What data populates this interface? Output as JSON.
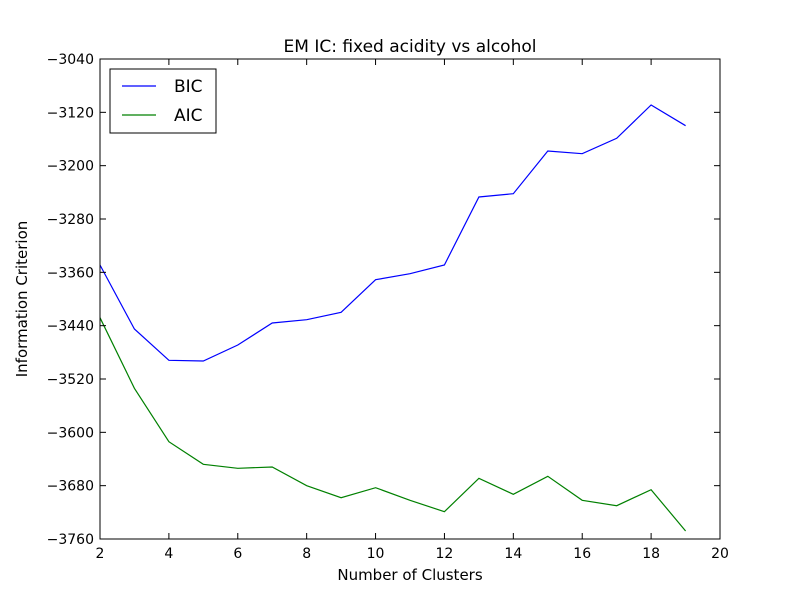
{
  "chart_data": {
    "type": "line",
    "title": "EM IC: fixed acidity vs alcohol",
    "xlabel": "Number of Clusters",
    "ylabel": "Information Criterion",
    "xlim": [
      2,
      20
    ],
    "ylim": [
      -3760,
      -3040
    ],
    "xticks": [
      2,
      4,
      6,
      8,
      10,
      12,
      14,
      16,
      18,
      20
    ],
    "yticks": [
      -3760,
      -3680,
      -3600,
      -3520,
      -3440,
      -3360,
      -3280,
      -3200,
      -3120,
      -3040
    ],
    "xtick_labels": [
      "2",
      "4",
      "6",
      "8",
      "10",
      "12",
      "14",
      "16",
      "18",
      "20"
    ],
    "ytick_labels": [
      "−3760",
      "−3680",
      "−3600",
      "−3520",
      "−3440",
      "−3360",
      "−3280",
      "−3200",
      "−3120",
      "−3040"
    ],
    "grid": false,
    "legend_position": "top-left",
    "x": [
      2,
      3,
      4,
      5,
      6,
      7,
      8,
      9,
      10,
      11,
      12,
      13,
      14,
      15,
      16,
      17,
      18,
      19
    ],
    "series": [
      {
        "name": "BIC",
        "color": "#0000ff",
        "values": [
          -3349,
          -3445,
          -3492,
          -3493,
          -3469,
          -3436,
          -3431,
          -3420,
          -3371,
          -3362,
          -3349,
          -3247,
          -3242,
          -3178,
          -3182,
          -3159,
          -3109,
          -3140
        ]
      },
      {
        "name": "AIC",
        "color": "#008000",
        "values": [
          -3428,
          -3534,
          -3614,
          -3648,
          -3654,
          -3652,
          -3680,
          -3698,
          -3683,
          -3702,
          -3719,
          -3669,
          -3693,
          -3666,
          -3702,
          -3710,
          -3686,
          -3748
        ]
      }
    ]
  }
}
